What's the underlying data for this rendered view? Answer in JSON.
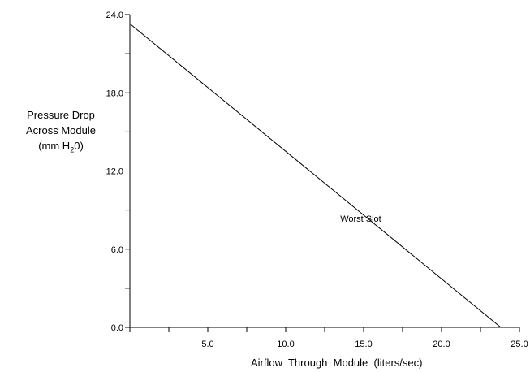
{
  "chart_data": {
    "type": "line",
    "xlabel": "Airflow  Through  Module  (liters/sec)",
    "ylabel": {
      "line1": "Pressure Drop",
      "line2": "Across Module",
      "line3_prefix": "(mm H",
      "line3_sub": "2",
      "line3_suffix": "0)"
    },
    "xlim": [
      0,
      25
    ],
    "ylim": [
      0,
      24
    ],
    "x_ticks": [
      0,
      2.5,
      5,
      7.5,
      10,
      12.5,
      15,
      17.5,
      20,
      22.5,
      25
    ],
    "y_ticks": [
      0,
      3,
      6,
      9,
      12,
      15,
      18,
      21,
      24
    ],
    "x_tick_labels": [
      {
        "value": 5,
        "label": "5.0"
      },
      {
        "value": 10,
        "label": "10.0"
      },
      {
        "value": 15,
        "label": "15.0"
      },
      {
        "value": 20,
        "label": "20.0"
      },
      {
        "value": 25,
        "label": "25.0"
      }
    ],
    "y_tick_labels": [
      {
        "value": 0,
        "label": "0.0"
      },
      {
        "value": 6,
        "label": "6.0"
      },
      {
        "value": 12,
        "label": "12.0"
      },
      {
        "value": 18,
        "label": "18.0"
      },
      {
        "value": 24,
        "label": "24.0"
      }
    ],
    "grid": false,
    "series": [
      {
        "name": "Worst Slot",
        "x": [
          0,
          23.8
        ],
        "y": [
          23.3,
          0
        ],
        "color": "#000000"
      }
    ],
    "annotations": [
      {
        "text": "Worst Slot",
        "x": 13.5,
        "y": 8.1
      }
    ]
  }
}
